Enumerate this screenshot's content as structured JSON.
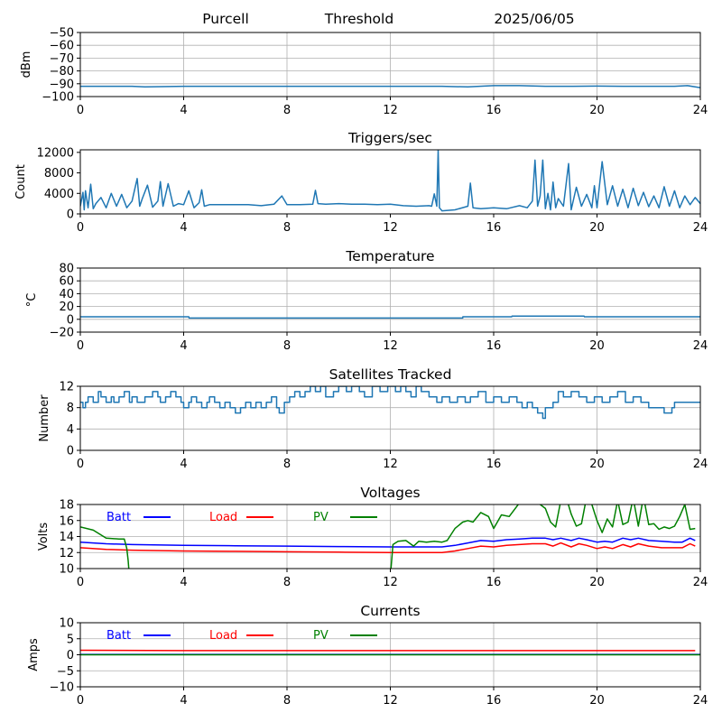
{
  "header": {
    "station": "Purcell",
    "name": "Threshold",
    "date": "2025/06/05"
  },
  "chart_data": [
    {
      "type": "line",
      "title": "",
      "xlabel": "",
      "ylabel": "dBm",
      "xlim": [
        0,
        24
      ],
      "ylim": [
        -100,
        -50
      ],
      "xticks": [
        0,
        4,
        8,
        12,
        16,
        20,
        24
      ],
      "yticks": [
        -100,
        -90,
        -80,
        -70,
        -60,
        -50
      ],
      "grid": true,
      "series": [
        {
          "color": "#1f77b4",
          "x": [
            0,
            2,
            2.5,
            4,
            8,
            12,
            14,
            15,
            16,
            17,
            18,
            19,
            20,
            21,
            22,
            23,
            23.5,
            24
          ],
          "y": [
            -92,
            -92,
            -92.5,
            -92,
            -92,
            -92,
            -92,
            -92.5,
            -91.5,
            -91.5,
            -92,
            -92,
            -91.8,
            -92,
            -92,
            -92,
            -91.5,
            -93
          ]
        }
      ]
    },
    {
      "type": "line",
      "title": "Triggers/sec",
      "xlabel": "",
      "ylabel": "Count",
      "xlim": [
        0,
        24
      ],
      "ylim": [
        0,
        12500
      ],
      "xticks": [
        0,
        4,
        8,
        12,
        16,
        20,
        24
      ],
      "yticks": [
        0,
        4000,
        8000,
        12000
      ],
      "grid": false,
      "series": [
        {
          "color": "#1f77b4",
          "x": [
            0,
            0.1,
            0.15,
            0.2,
            0.3,
            0.4,
            0.5,
            0.6,
            0.8,
            1.0,
            1.2,
            1.4,
            1.6,
            1.8,
            2.0,
            2.2,
            2.3,
            2.4,
            2.6,
            2.8,
            3.0,
            3.1,
            3.2,
            3.4,
            3.6,
            3.8,
            4.0,
            4.2,
            4.4,
            4.6,
            4.7,
            4.8,
            5.0,
            5.5,
            6.0,
            6.5,
            7.0,
            7.5,
            7.8,
            8.0,
            8.5,
            9.0,
            9.1,
            9.2,
            9.5,
            10.0,
            10.5,
            11.0,
            11.5,
            12.0,
            12.5,
            13.0,
            13.5,
            13.6,
            13.7,
            13.8,
            13.85,
            13.9,
            14.0,
            14.5,
            15.0,
            15.1,
            15.2,
            15.5,
            16.0,
            16.5,
            17.0,
            17.3,
            17.5,
            17.6,
            17.7,
            17.8,
            17.9,
            18.0,
            18.1,
            18.2,
            18.3,
            18.4,
            18.5,
            18.7,
            18.9,
            19.0,
            19.2,
            19.4,
            19.6,
            19.8,
            19.9,
            20.0,
            20.2,
            20.4,
            20.6,
            20.8,
            21.0,
            21.2,
            21.4,
            21.6,
            21.8,
            22.0,
            22.2,
            22.4,
            22.6,
            22.8,
            23.0,
            23.2,
            23.4,
            23.6,
            23.8,
            24.0
          ],
          "y": [
            1500,
            4200,
            800,
            4500,
            1200,
            5800,
            1000,
            2000,
            3200,
            1200,
            4000,
            1500,
            3800,
            1200,
            2500,
            6900,
            1500,
            3000,
            5600,
            1300,
            2500,
            6300,
            1500,
            5900,
            1500,
            2000,
            1800,
            4500,
            1200,
            2200,
            4700,
            1500,
            1800,
            1800,
            1800,
            1800,
            1600,
            1900,
            3500,
            1800,
            1800,
            1900,
            4600,
            2000,
            1900,
            2000,
            1900,
            1900,
            1800,
            1900,
            1600,
            1500,
            1600,
            1500,
            3900,
            1500,
            12500,
            1200,
            600,
            800,
            1500,
            6000,
            1200,
            1000,
            1200,
            1000,
            1600,
            1200,
            2500,
            10500,
            1500,
            3500,
            10500,
            1000,
            4000,
            800,
            6200,
            1200,
            3000,
            1500,
            9800,
            800,
            5200,
            1500,
            3800,
            1200,
            5500,
            1200,
            10200,
            1800,
            5500,
            1500,
            4800,
            1200,
            5000,
            1600,
            4200,
            1400,
            3500,
            1200,
            5300,
            1500,
            4500,
            1200,
            3500,
            1800,
            3200,
            2000
          ]
        }
      ]
    },
    {
      "type": "line",
      "title": "Temperature",
      "xlabel": "",
      "ylabel": "°C",
      "xlim": [
        0,
        24
      ],
      "ylim": [
        -20,
        80
      ],
      "xticks": [
        0,
        4,
        8,
        12,
        16,
        20,
        24
      ],
      "yticks": [
        -20,
        0,
        20,
        40,
        60,
        80
      ],
      "grid": true,
      "series": [
        {
          "color": "#1f77b4",
          "x": [
            0,
            4.2,
            4.21,
            14.8,
            14.81,
            16.7,
            16.71,
            19.5,
            19.51,
            24
          ],
          "y": [
            4,
            4,
            2,
            2,
            4,
            4,
            5,
            5,
            4,
            4
          ]
        }
      ]
    },
    {
      "type": "line",
      "title": "Satellites Tracked",
      "xlabel": "",
      "ylabel": "Number",
      "xlim": [
        0,
        24
      ],
      "ylim": [
        0,
        12
      ],
      "xticks": [
        0,
        4,
        8,
        12,
        16,
        20,
        24
      ],
      "yticks": [
        0,
        4,
        8,
        12
      ],
      "grid": true,
      "series": [
        {
          "color": "#1f77b4",
          "step": true,
          "x": [
            0,
            0.1,
            0.2,
            0.3,
            0.5,
            0.7,
            0.8,
            1.0,
            1.2,
            1.3,
            1.5,
            1.7,
            1.9,
            2.0,
            2.2,
            2.5,
            2.8,
            3.0,
            3.1,
            3.3,
            3.5,
            3.7,
            3.9,
            4.0,
            4.2,
            4.3,
            4.5,
            4.7,
            4.9,
            5.0,
            5.2,
            5.4,
            5.6,
            5.8,
            6.0,
            6.2,
            6.4,
            6.6,
            6.8,
            7.0,
            7.2,
            7.4,
            7.6,
            7.7,
            7.9,
            8.1,
            8.3,
            8.5,
            8.7,
            8.9,
            9.1,
            9.3,
            9.5,
            9.8,
            10.0,
            10.3,
            10.5,
            10.8,
            11.0,
            11.3,
            11.6,
            11.9,
            12.0,
            12.2,
            12.4,
            12.6,
            12.8,
            13.0,
            13.2,
            13.5,
            13.8,
            14.0,
            14.3,
            14.6,
            14.9,
            15.1,
            15.4,
            15.7,
            16.0,
            16.3,
            16.6,
            16.9,
            17.1,
            17.3,
            17.5,
            17.7,
            17.9,
            18.0,
            18.3,
            18.5,
            18.7,
            19.0,
            19.3,
            19.6,
            19.9,
            20.2,
            20.5,
            20.8,
            21.1,
            21.4,
            21.7,
            22.0,
            22.3,
            22.6,
            22.9,
            23.0,
            23.3,
            23.6,
            24.0
          ],
          "y": [
            9,
            8,
            9,
            10,
            9,
            11,
            10,
            9,
            10,
            9,
            10,
            11,
            9,
            10,
            9,
            10,
            11,
            10,
            9,
            10,
            11,
            10,
            9,
            8,
            9,
            10,
            9,
            8,
            9,
            10,
            9,
            8,
            9,
            8,
            7,
            8,
            9,
            8,
            9,
            8,
            9,
            10,
            8,
            7,
            9,
            10,
            11,
            10,
            11,
            12,
            11,
            12,
            10,
            11,
            12,
            11,
            12,
            11,
            10,
            12,
            11,
            12,
            12,
            11,
            12,
            11,
            10,
            12,
            11,
            10,
            9,
            10,
            9,
            10,
            9,
            10,
            11,
            9,
            10,
            9,
            10,
            9,
            8,
            9,
            8,
            7,
            6,
            8,
            9,
            11,
            10,
            11,
            10,
            9,
            10,
            9,
            10,
            11,
            9,
            10,
            9,
            8,
            8,
            7,
            8,
            9,
            9,
            9,
            9
          ]
        }
      ]
    },
    {
      "type": "line",
      "title": "Voltages",
      "xlabel": "",
      "ylabel": "Volts",
      "xlim": [
        0,
        24
      ],
      "ylim": [
        10,
        18
      ],
      "xticks": [
        0,
        4,
        8,
        12,
        16,
        20,
        24
      ],
      "yticks": [
        10,
        12,
        14,
        16,
        18
      ],
      "grid": true,
      "legend": "top",
      "series": [
        {
          "name": "Batt",
          "color": "#0000ff",
          "x": [
            0,
            1,
            2,
            4,
            6,
            8,
            10,
            12,
            13,
            14,
            14.5,
            15,
            15.5,
            16,
            16.5,
            17,
            17.5,
            18,
            18.3,
            18.6,
            19,
            19.3,
            19.6,
            20,
            20.3,
            20.6,
            21,
            21.3,
            21.6,
            22,
            22.5,
            23,
            23.3,
            23.6,
            23.8
          ],
          "y": [
            13.3,
            13.1,
            13.0,
            12.9,
            12.85,
            12.8,
            12.75,
            12.7,
            12.7,
            12.7,
            12.9,
            13.2,
            13.5,
            13.4,
            13.6,
            13.7,
            13.8,
            13.8,
            13.6,
            13.8,
            13.5,
            13.8,
            13.6,
            13.3,
            13.4,
            13.3,
            13.8,
            13.6,
            13.8,
            13.5,
            13.4,
            13.3,
            13.3,
            13.8,
            13.5
          ]
        },
        {
          "name": "Load",
          "color": "#ff0000",
          "x": [
            0,
            1,
            2,
            4,
            6,
            8,
            10,
            12,
            13,
            14,
            14.5,
            15,
            15.5,
            16,
            16.5,
            17,
            17.5,
            18,
            18.3,
            18.6,
            19,
            19.3,
            19.6,
            20,
            20.3,
            20.6,
            21,
            21.3,
            21.6,
            22,
            22.5,
            23,
            23.3,
            23.6,
            23.8
          ],
          "y": [
            12.6,
            12.4,
            12.3,
            12.2,
            12.15,
            12.1,
            12.05,
            12.0,
            12.0,
            12.0,
            12.2,
            12.5,
            12.8,
            12.7,
            12.9,
            13.0,
            13.1,
            13.1,
            12.8,
            13.2,
            12.7,
            13.1,
            12.9,
            12.5,
            12.7,
            12.5,
            13.0,
            12.7,
            13.1,
            12.8,
            12.6,
            12.6,
            12.6,
            13.1,
            12.8
          ]
        },
        {
          "name": "PV",
          "color": "#008000",
          "x": [
            0,
            0.5,
            1.0,
            1.5,
            1.7,
            1.8,
            1.85,
            1.9,
            12.0,
            12.1,
            12.3,
            12.6,
            12.9,
            13.1,
            13.4,
            13.7,
            14.0,
            14.2,
            14.5,
            14.8,
            15.0,
            15.2,
            15.5,
            15.8,
            16.0,
            16.3,
            16.6,
            17.0,
            17.3,
            17.6,
            18.0,
            18.2,
            18.4,
            18.6,
            18.8,
            19.0,
            19.2,
            19.4,
            19.6,
            19.8,
            20.0,
            20.2,
            20.4,
            20.6,
            20.8,
            21.0,
            21.2,
            21.4,
            21.6,
            21.8,
            22.0,
            22.2,
            22.4,
            22.6,
            22.8,
            23.0,
            23.2,
            23.4,
            23.6,
            23.8
          ],
          "y": [
            15.2,
            14.8,
            13.8,
            13.7,
            13.7,
            12.5,
            11.0,
            9.0,
            9.0,
            13.0,
            13.4,
            13.5,
            12.8,
            13.4,
            13.3,
            13.4,
            13.3,
            13.5,
            15.0,
            15.8,
            16.0,
            15.8,
            17.0,
            16.5,
            15.0,
            16.7,
            16.5,
            18.2,
            19.0,
            18.5,
            17.5,
            15.8,
            15.2,
            18.5,
            19.0,
            16.8,
            15.3,
            15.6,
            19.0,
            18.0,
            16.0,
            14.5,
            16.2,
            15.2,
            18.5,
            15.5,
            15.8,
            18.8,
            15.3,
            19.0,
            15.5,
            15.6,
            14.9,
            15.2,
            15.0,
            15.3,
            16.5,
            18.0,
            14.9,
            15.0
          ]
        }
      ]
    },
    {
      "type": "line",
      "title": "Currents",
      "xlabel": "",
      "ylabel": "Amps",
      "xlim": [
        0,
        24
      ],
      "ylim": [
        -10,
        10
      ],
      "xticks": [
        0,
        4,
        8,
        12,
        16,
        20,
        24
      ],
      "yticks": [
        -10,
        -5,
        0,
        5,
        10
      ],
      "grid": true,
      "legend": "top",
      "series": [
        {
          "name": "Batt",
          "color": "#0000ff",
          "x": [
            0,
            24
          ],
          "y": [
            0.1,
            0.1
          ]
        },
        {
          "name": "Load",
          "color": "#ff0000",
          "x": [
            0,
            4,
            8,
            12,
            16,
            20,
            23.8
          ],
          "y": [
            1.4,
            1.3,
            1.3,
            1.3,
            1.3,
            1.3,
            1.3
          ]
        },
        {
          "name": "PV",
          "color": "#008000",
          "x": [
            0,
            24
          ],
          "y": [
            0.0,
            0.0
          ]
        }
      ]
    }
  ]
}
